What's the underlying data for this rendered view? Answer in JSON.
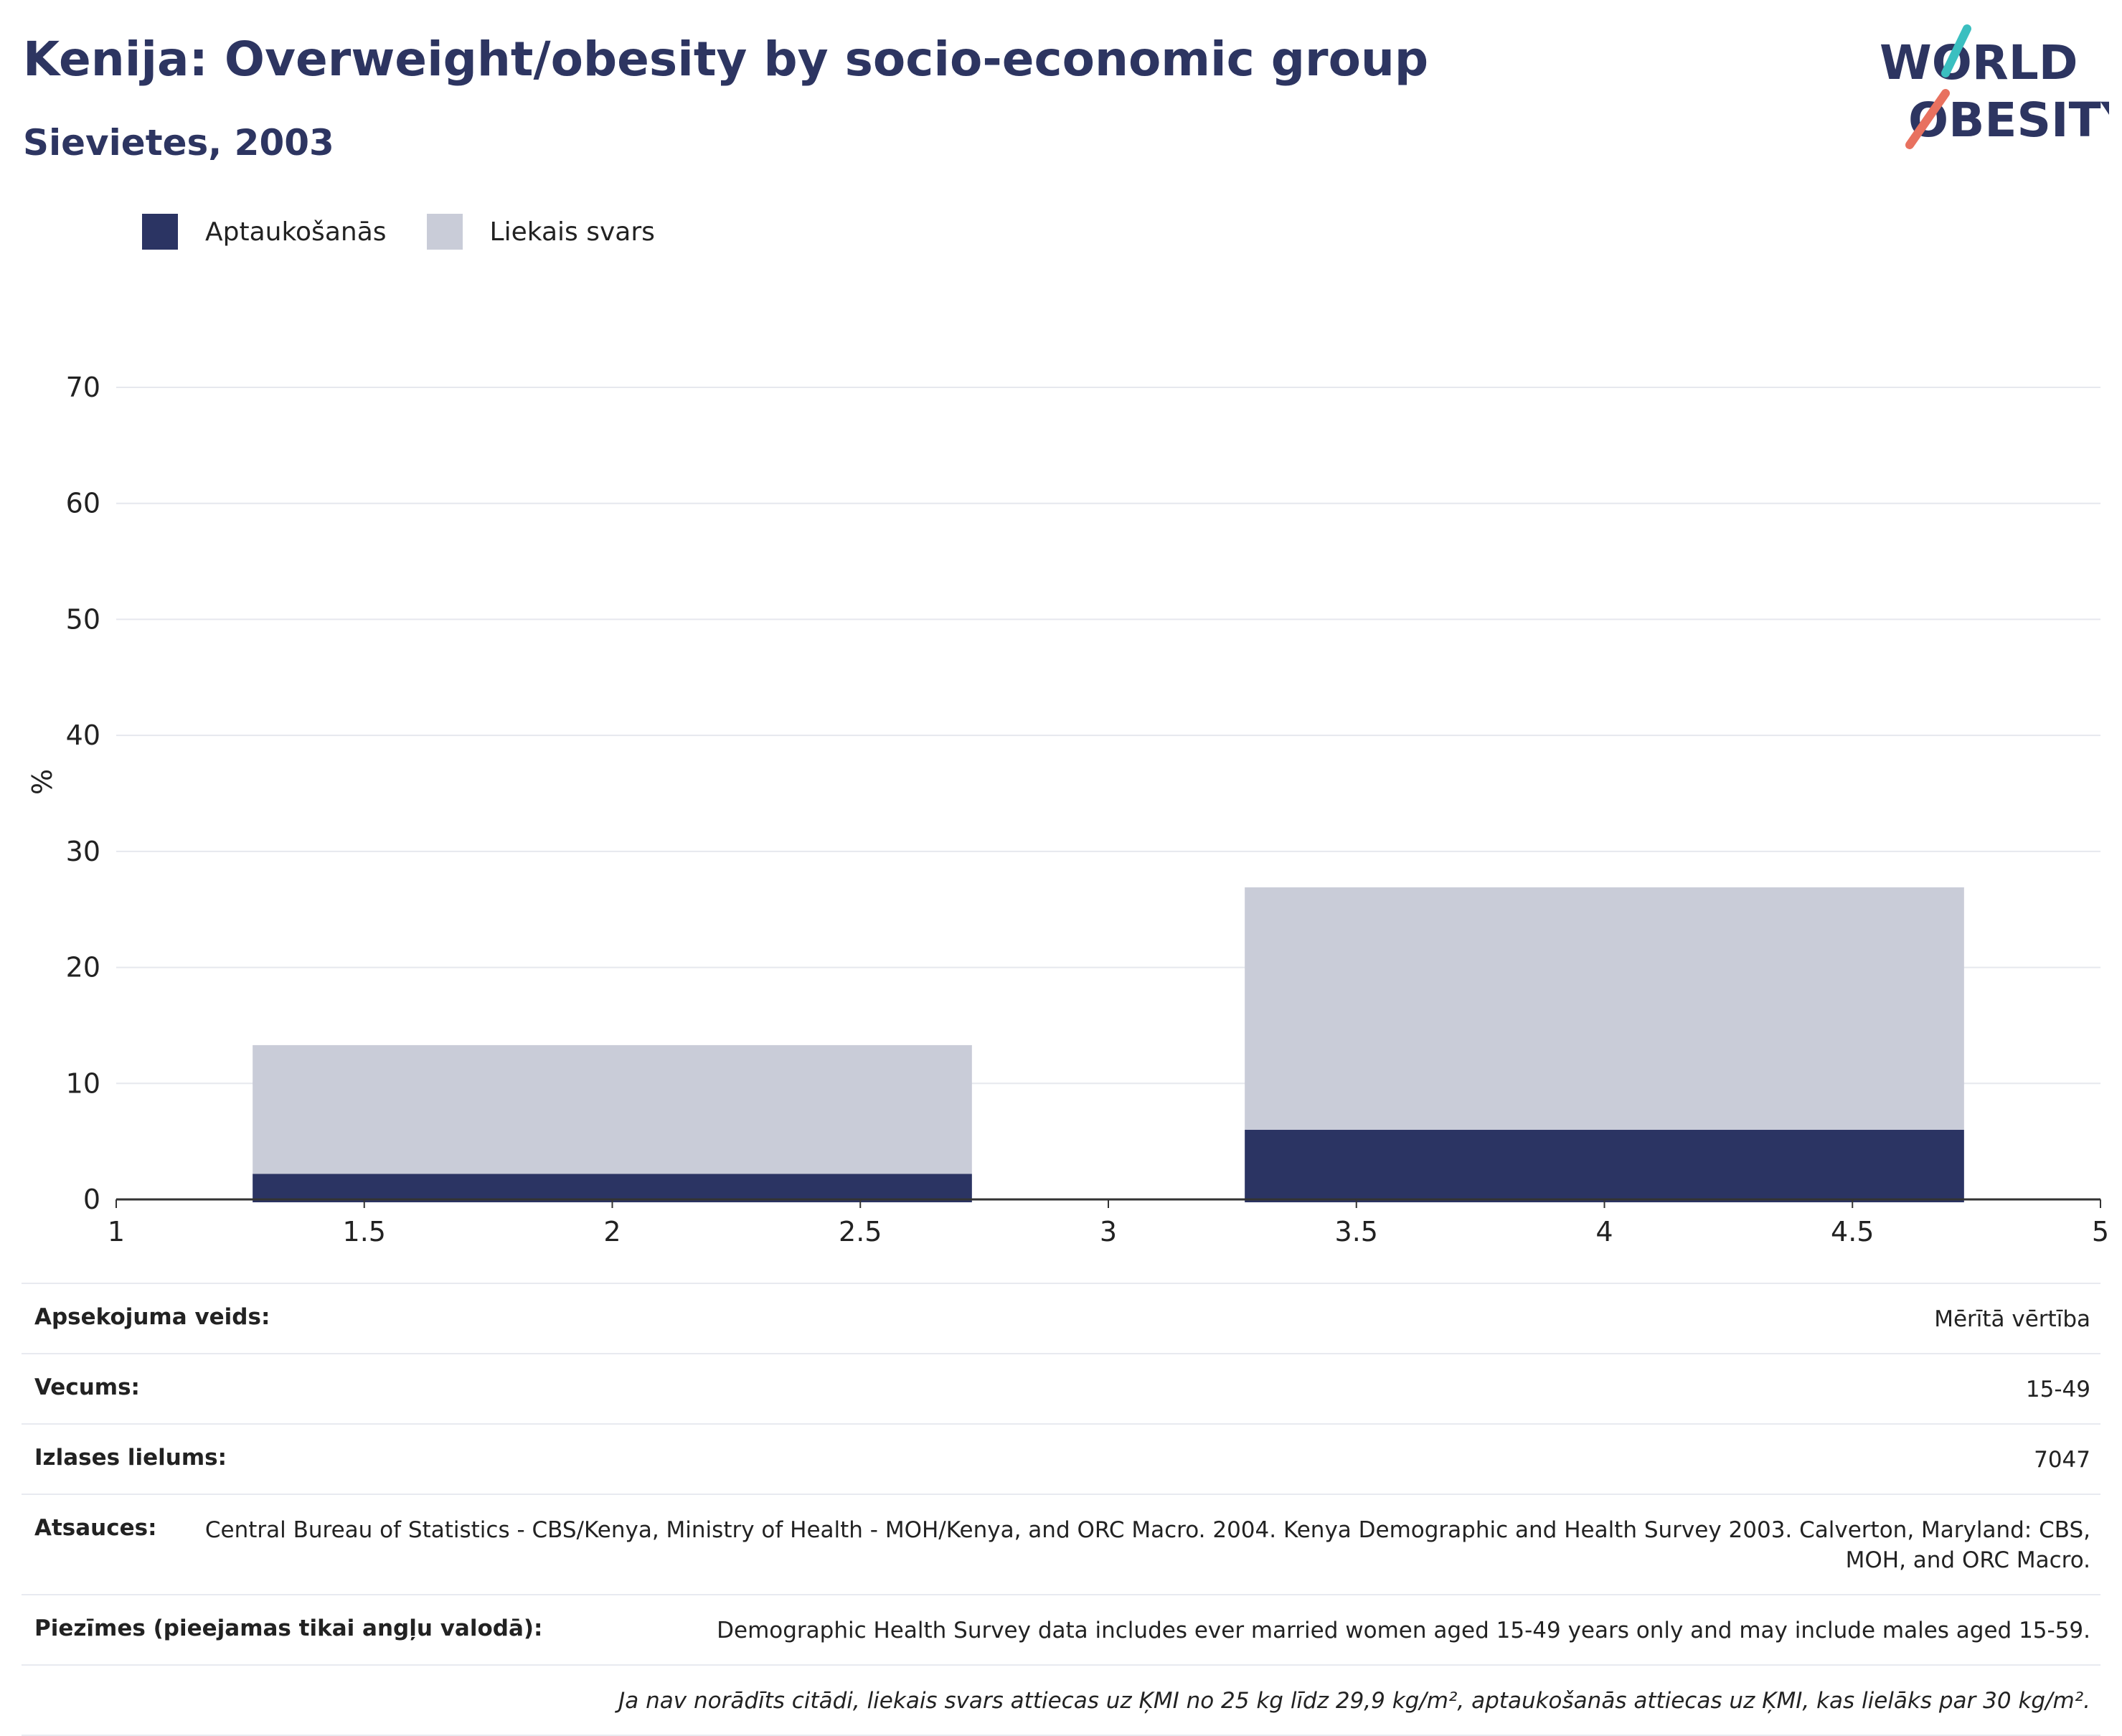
{
  "header": {
    "title": "Kenija: Overweight/obesity by socio-economic group",
    "subtitle": "Sievietes, 2003"
  },
  "logo": {
    "line1": "WORLD",
    "line2": "OBESITY"
  },
  "colors": {
    "obesity": "#2b3463",
    "overweight": "#c9ccd8",
    "accent": "#2d3561"
  },
  "chart_data": {
    "type": "bar",
    "stacked": true,
    "ylabel": "%",
    "xlim": [
      1,
      5
    ],
    "ylim": [
      0,
      70
    ],
    "x_ticks": [
      "1",
      "1.5",
      "2",
      "2.5",
      "3",
      "3.5",
      "4",
      "4.5",
      "5"
    ],
    "y_ticks": [
      "0",
      "10",
      "20",
      "30",
      "40",
      "50",
      "60",
      "70"
    ],
    "bars": [
      {
        "x_center": 2,
        "width": 1.45,
        "obesity": 2.2,
        "overweight": 11.1
      },
      {
        "x_center": 4,
        "width": 1.45,
        "obesity": 6.0,
        "overweight": 20.9
      }
    ],
    "legend": [
      {
        "key": "obesity",
        "label": "Aptaukošanās"
      },
      {
        "key": "overweight",
        "label": "Liekais svars"
      }
    ],
    "legend_position": "top-left",
    "grid": true
  },
  "meta": {
    "rows": [
      {
        "label": "Apsekojuma veids:",
        "value": "Mērītā vērtība"
      },
      {
        "label": "Vecums:",
        "value": "15-49"
      },
      {
        "label": "Izlases lielums:",
        "value": "7047"
      },
      {
        "label": "Atsauces:",
        "value": "Central Bureau of Statistics - CBS/Kenya, Ministry of Health - MOH/Kenya, and ORC Macro. 2004. Kenya Demographic and Health Survey 2003. Calverton, Maryland: CBS, MOH, and ORC Macro."
      },
      {
        "label": "Piezīmes (pieejamas tikai angļu valodā):",
        "value": "Demographic Health Survey data includes ever married women aged 15-49 years only and may include males aged 15-59."
      }
    ],
    "footnote": "Ja nav norādīts citādi, liekais svars attiecas uz ĶMI no 25 kg līdz 29,9 kg/m², aptaukošanās attiecas uz ĶMI, kas lielāks par 30 kg/m²."
  }
}
